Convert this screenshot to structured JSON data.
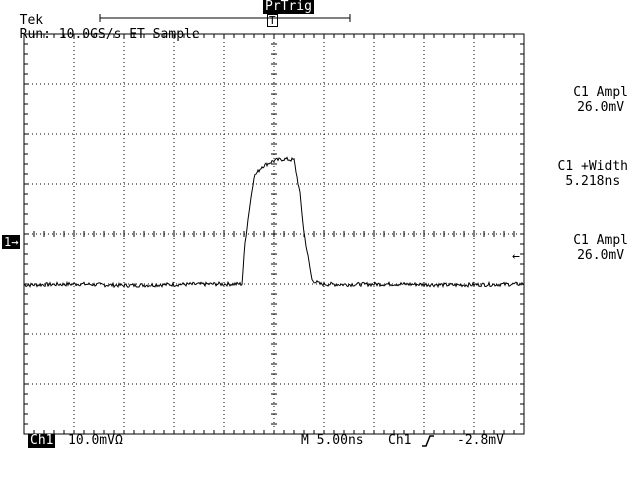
{
  "header": {
    "brand": "Tek",
    "status": "Run: 10.0GS/s ET Sample",
    "trigger_badge": "PrTrig",
    "trigger_marker": "T"
  },
  "channel_marker": "1→",
  "measurements": [
    {
      "label": "C1 Ampl",
      "value": "26.0mV"
    },
    {
      "label": "C1 +Width",
      "value": "5.218ns"
    },
    {
      "label": "C1 Ampl",
      "value": "26.0mV"
    }
  ],
  "trigger_level_marker": "←",
  "footer": {
    "channel": "Ch1",
    "scale": "10.0mVΩ",
    "timebase": "M 5.00ns",
    "trig_source": "Ch1",
    "trig_slope_icon": "rising-edge-icon",
    "trig_level": "-2.8mV"
  },
  "chart_data": {
    "type": "line",
    "title": "",
    "xlabel": "",
    "ylabel": "",
    "time_per_div_ns": 5.0,
    "volts_per_div_mV": 10.0,
    "divisions_x": 10,
    "divisions_y": 8,
    "xlim_ns": [
      -25,
      25
    ],
    "ylim_mV": [
      -40,
      40
    ],
    "grid": true,
    "series": [
      {
        "x_ns": [
          -25,
          -19.5,
          -15,
          -10,
          -5.3,
          -3.2,
          -2.9,
          -2.5,
          -2.0,
          -1.2,
          0,
          1.0,
          2.0,
          2.6,
          3.0,
          3.8,
          4.6,
          7,
          12,
          18,
          25
        ],
        "y_mV": [
          -10.2,
          -10.0,
          -10.3,
          -10.1,
          -10.0,
          -10.0,
          -1.8,
          4.5,
          11.5,
          13.5,
          14.7,
          15.0,
          14.8,
          8.0,
          0.2,
          -9.2,
          -10.0,
          -10.1,
          -10.0,
          -10.2,
          -10.0
        ]
      }
    ]
  }
}
